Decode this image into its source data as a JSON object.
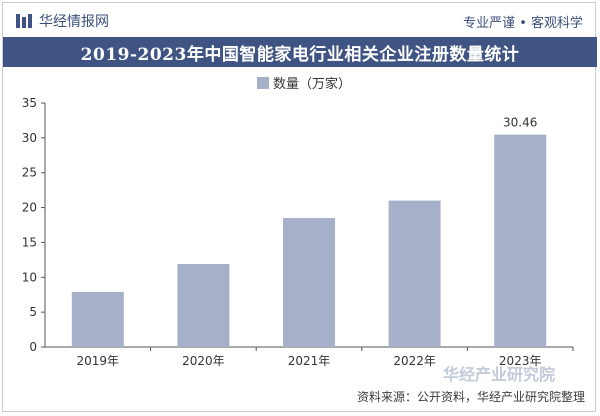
{
  "header": {
    "brand": "华经情报网",
    "slogan": "专业严谨 • 客观科学"
  },
  "title": "2019-2023年中国智能家电行业相关企业注册数量统计",
  "source": "资料来源：公开资料，华经产业研究院整理",
  "watermark": {
    "text": "华经产业研究院",
    "url": "www.huaon.com"
  },
  "colors": {
    "title_bar": "#3f5482",
    "bar": "#a6b0c9",
    "axis": "#555555"
  },
  "chart_data": {
    "type": "bar",
    "title": "2019-2023年中国智能家电行业相关企业注册数量统计",
    "categories": [
      "2019年",
      "2020年",
      "2021年",
      "2022年",
      "2023年"
    ],
    "series": [
      {
        "name": "数量（万家）",
        "values": [
          7.9,
          11.9,
          18.5,
          21.0,
          30.46
        ]
      }
    ],
    "data_labels": [
      "",
      "",
      "",
      "",
      "30.46"
    ],
    "ylim": [
      0,
      35
    ],
    "yticks": [
      0,
      5,
      10,
      15,
      20,
      25,
      30,
      35
    ],
    "legend": "top-center",
    "grid": false
  }
}
